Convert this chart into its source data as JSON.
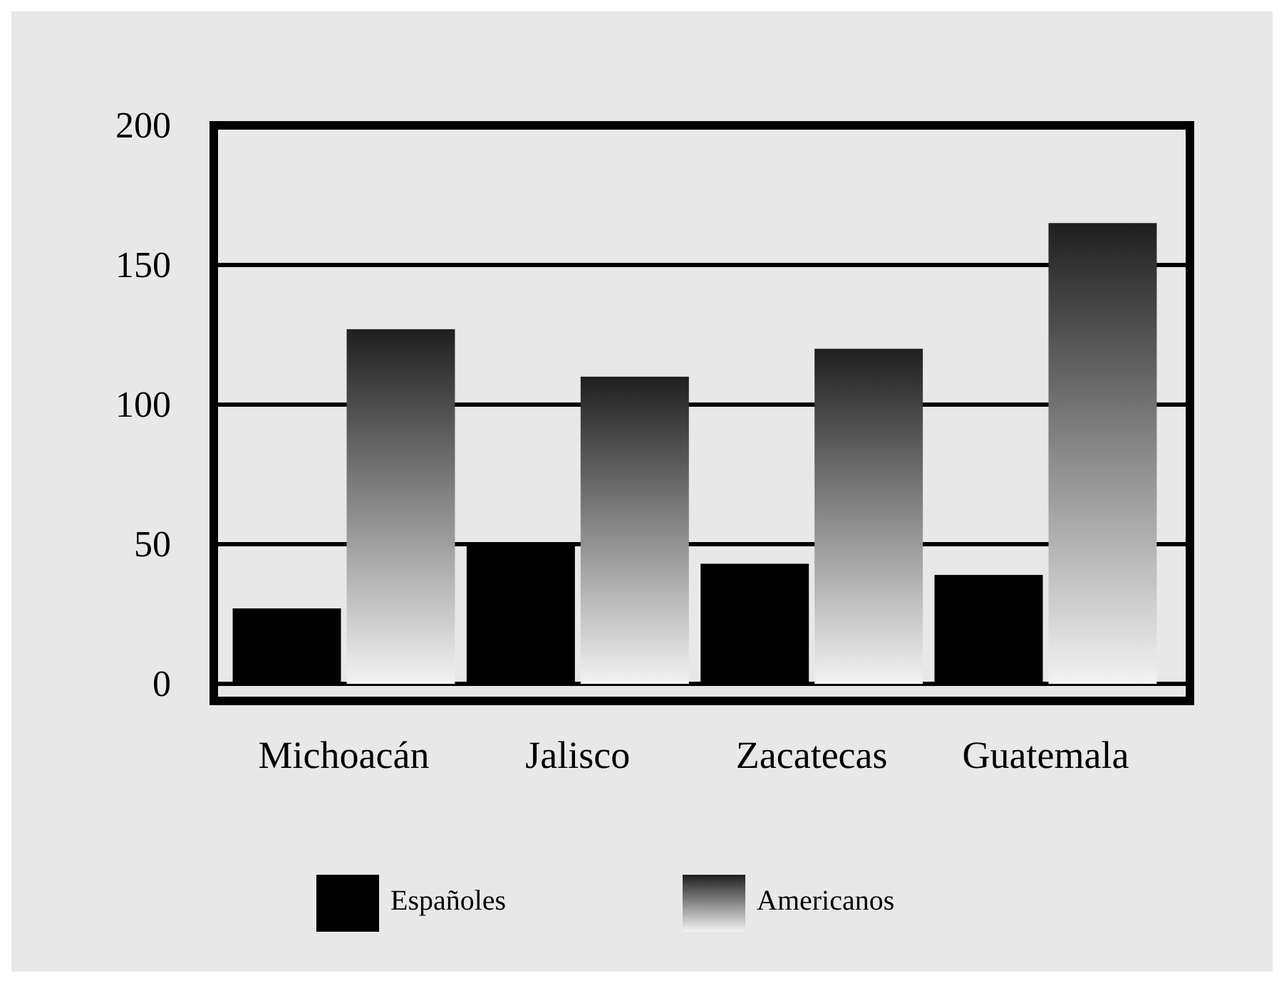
{
  "chart_data": {
    "type": "bar",
    "categories": [
      "Michoacán",
      "Jalisco",
      "Zacatecas",
      "Guatemala"
    ],
    "series": [
      {
        "name": "Españoles",
        "color": "#000000",
        "values": [
          27,
          50,
          43,
          39
        ]
      },
      {
        "name": "Americanos",
        "color": "#808080",
        "values": [
          127,
          110,
          120,
          165
        ]
      }
    ],
    "ylim": [
      0,
      200
    ],
    "yticks": [
      0,
      50,
      100,
      150,
      200
    ],
    "grid": "y",
    "legend": "bottom"
  }
}
